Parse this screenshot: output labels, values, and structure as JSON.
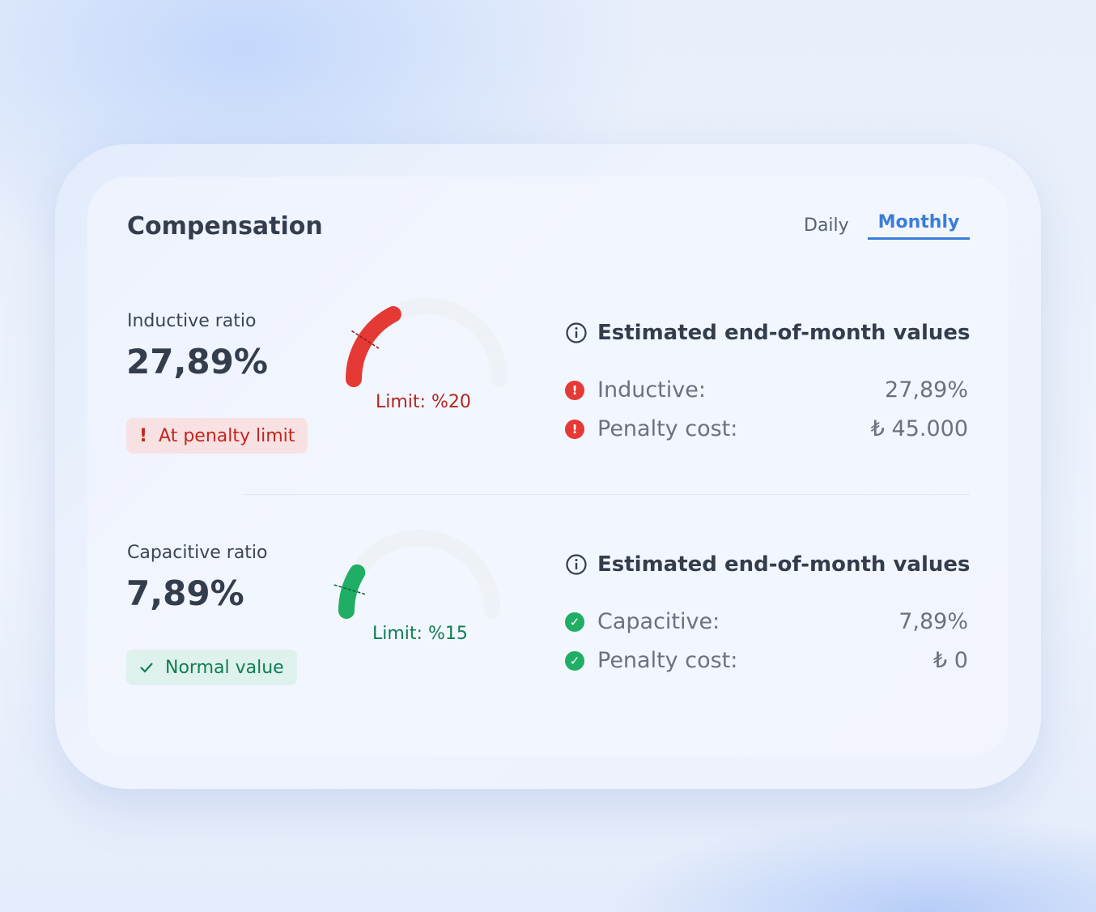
{
  "title": "Compensation",
  "tabs": [
    {
      "label": "Daily",
      "active": false
    },
    {
      "label": "Monthly",
      "active": true
    }
  ],
  "inductive": {
    "label": "Inductive ratio",
    "value": "27,89%",
    "value_num": 27.89,
    "limit_label": "Limit: %20",
    "limit_num": 20,
    "badge": "At penalty limit",
    "badge_icon": "exclamation-icon",
    "color": "#e53935",
    "estimate": {
      "heading": "Estimated end-of-month values",
      "rows": [
        {
          "label": "Inductive:",
          "value": "27,89%"
        },
        {
          "label": "Penalty cost:",
          "value": "₺ 45.000"
        }
      ]
    }
  },
  "capacitive": {
    "label": "Capacitive ratio",
    "value": "7,89%",
    "value_num": 7.89,
    "limit_label": "Limit: %15",
    "limit_num": 15,
    "badge": "Normal value",
    "badge_icon": "check-icon",
    "color": "#1fae63",
    "estimate": {
      "heading": "Estimated end-of-month values",
      "rows": [
        {
          "label": "Capacitive:",
          "value": "7,89%"
        },
        {
          "label": "Penalty cost:",
          "value": "₺ 0"
        }
      ]
    }
  }
}
